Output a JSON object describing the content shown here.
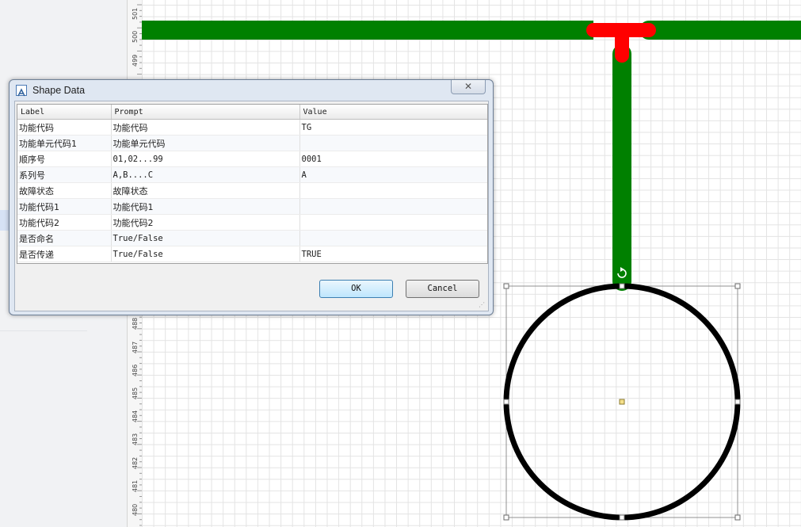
{
  "ruler": {
    "labels": [
      "501",
      "500",
      "499",
      "488",
      "487",
      "486",
      "485",
      "484",
      "483",
      "482",
      "481",
      "480"
    ]
  },
  "dialog": {
    "title": "Shape Data",
    "close_icon": "close-icon",
    "columns": [
      "Label",
      "Prompt",
      "Value"
    ],
    "rows": [
      {
        "label": "功能代码",
        "prompt": "功能代码",
        "value": "TG"
      },
      {
        "label": "功能单元代码1",
        "prompt": "功能单元代码",
        "value": ""
      },
      {
        "label": "顺序号",
        "prompt": "01,02...99",
        "value": "0001"
      },
      {
        "label": "系列号",
        "prompt": "A,B....C",
        "value": "A"
      },
      {
        "label": "故障状态",
        "prompt": "故障状态",
        "value": ""
      },
      {
        "label": "功能代码1",
        "prompt": "功能代码1",
        "value": ""
      },
      {
        "label": "功能代码2",
        "prompt": "功能代码2",
        "value": ""
      },
      {
        "label": "是否命名",
        "prompt": "True/False",
        "value": ""
      },
      {
        "label": "是否传递",
        "prompt": "True/False",
        "value": "TRUE"
      }
    ],
    "ok_label": "OK",
    "cancel_label": "Cancel"
  },
  "colors": {
    "pipe": "#008000",
    "tee": "#ff0000",
    "circle": "#000000",
    "selection": "#909090",
    "center_handle": "#f5e08a"
  }
}
